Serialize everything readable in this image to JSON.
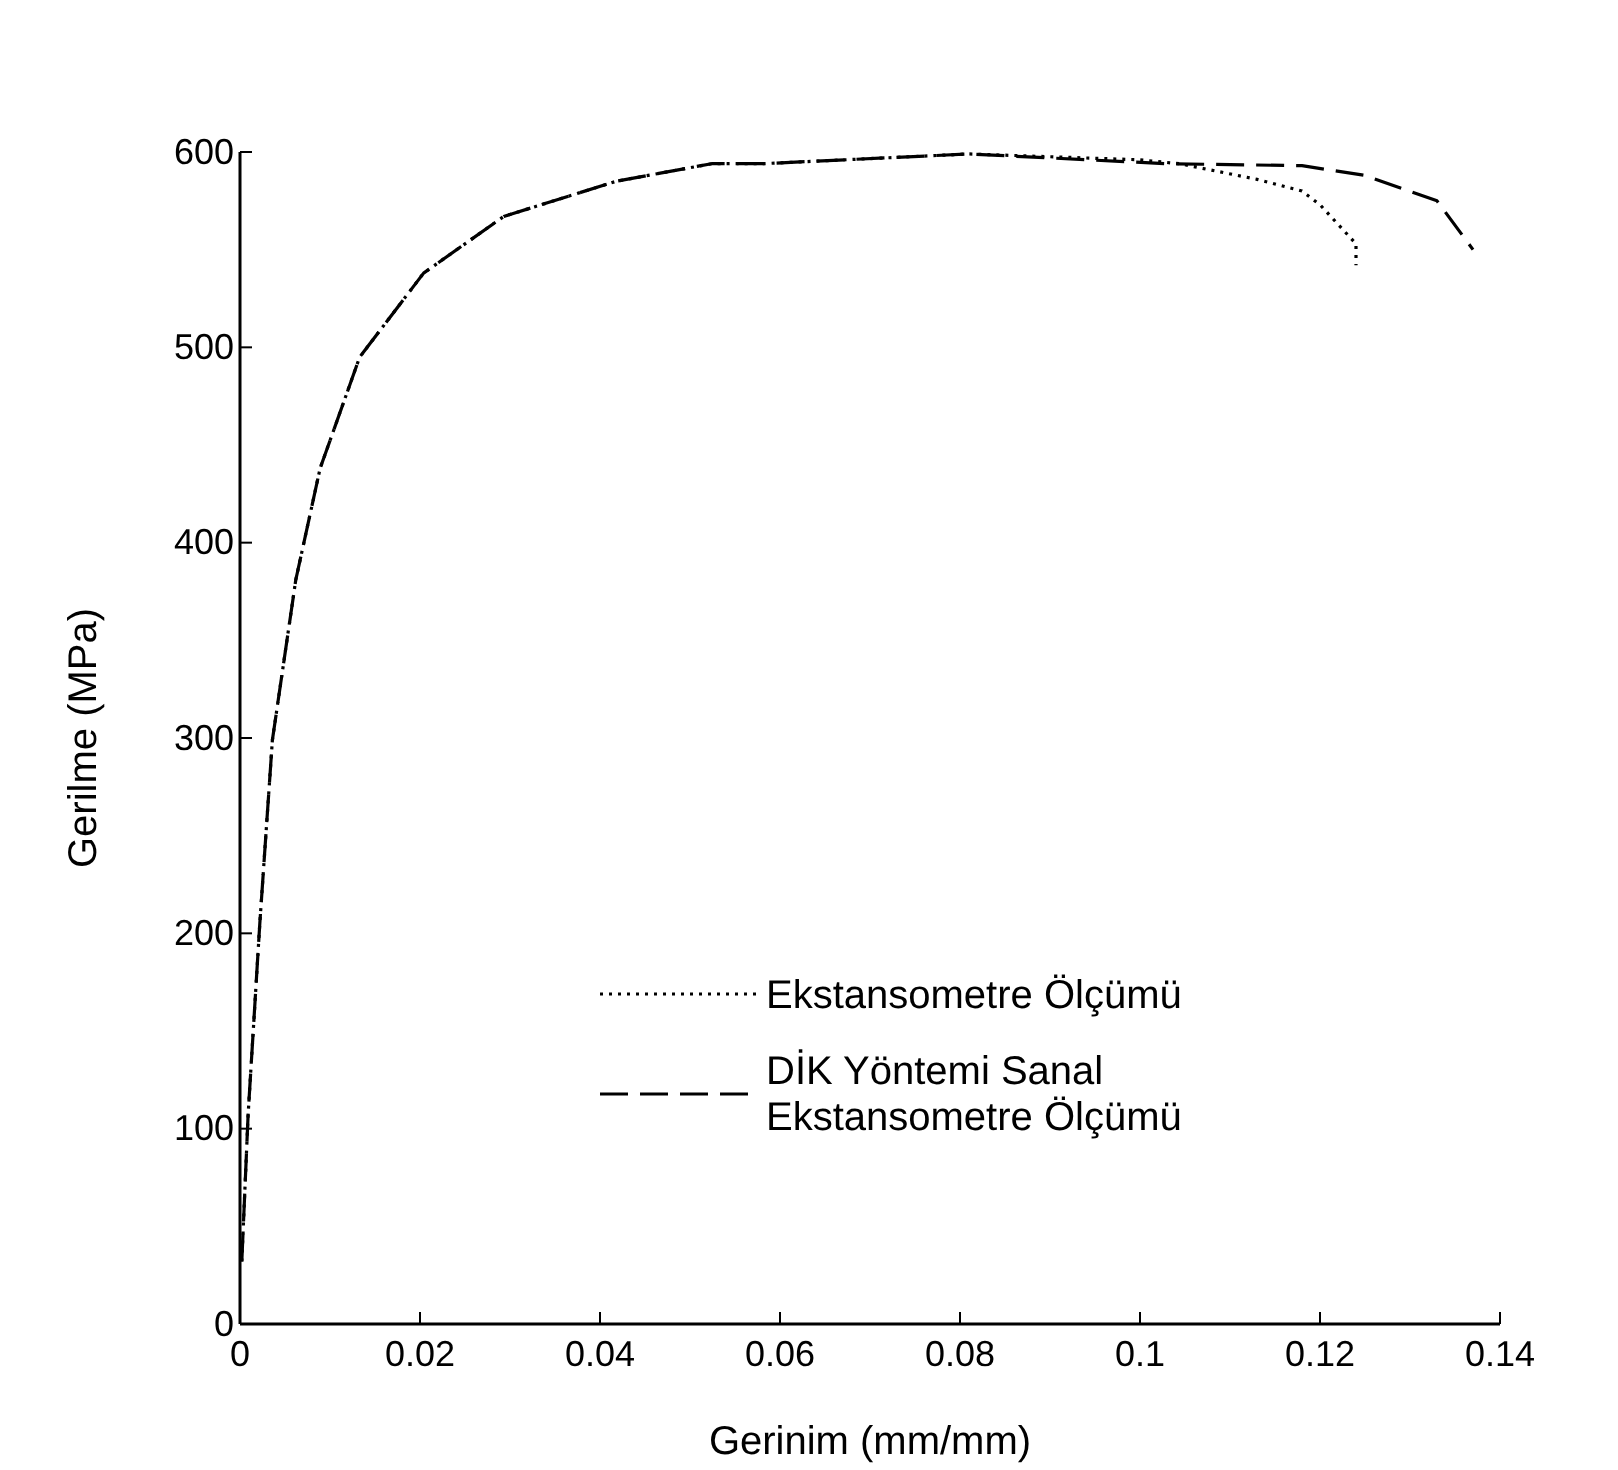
{
  "chart_data": {
    "type": "line",
    "xlabel": "Gerinim (mm/mm)",
    "ylabel": "Gerilme (MPa)",
    "xlim": [
      0,
      0.14
    ],
    "ylim": [
      0,
      600
    ],
    "xticks": [
      0,
      0.02,
      0.04,
      0.06,
      0.08,
      0.1,
      0.12,
      0.14
    ],
    "yticks": [
      0,
      100,
      200,
      300,
      400,
      500,
      600
    ],
    "grid": false,
    "legend": "bottom right",
    "series": [
      {
        "name": "Ekstansometre Ölçümü",
        "color": "#000000",
        "line_style": "dotted",
        "x": [
          0.0002,
          0.0009,
          0.0022,
          0.0036,
          0.0062,
          0.0089,
          0.0133,
          0.0204,
          0.0293,
          0.0418,
          0.0524,
          0.058,
          0.081,
          0.1,
          0.1044,
          0.113,
          0.118,
          0.12,
          0.122,
          0.124,
          0.124
        ],
        "values": [
          32,
          107,
          205,
          299,
          381,
          438,
          495,
          538,
          567,
          585,
          594,
          594,
          599,
          596,
          594,
          586,
          580,
          573,
          563,
          553,
          542
        ]
      },
      {
        "name": "DİK Yöntemi Sanal Ekstansometre Ölçümü",
        "color": "#000000",
        "line_style": "dashed",
        "x": [
          0.0002,
          0.0009,
          0.0022,
          0.0036,
          0.0062,
          0.0089,
          0.0133,
          0.0204,
          0.0293,
          0.0418,
          0.0524,
          0.058,
          0.081,
          0.103,
          0.118,
          0.125,
          0.133,
          0.137
        ],
        "values": [
          32,
          107,
          205,
          299,
          381,
          438,
          495,
          538,
          567,
          585,
          594,
          594,
          599,
          594,
          593,
          588,
          575,
          550
        ]
      }
    ]
  }
}
